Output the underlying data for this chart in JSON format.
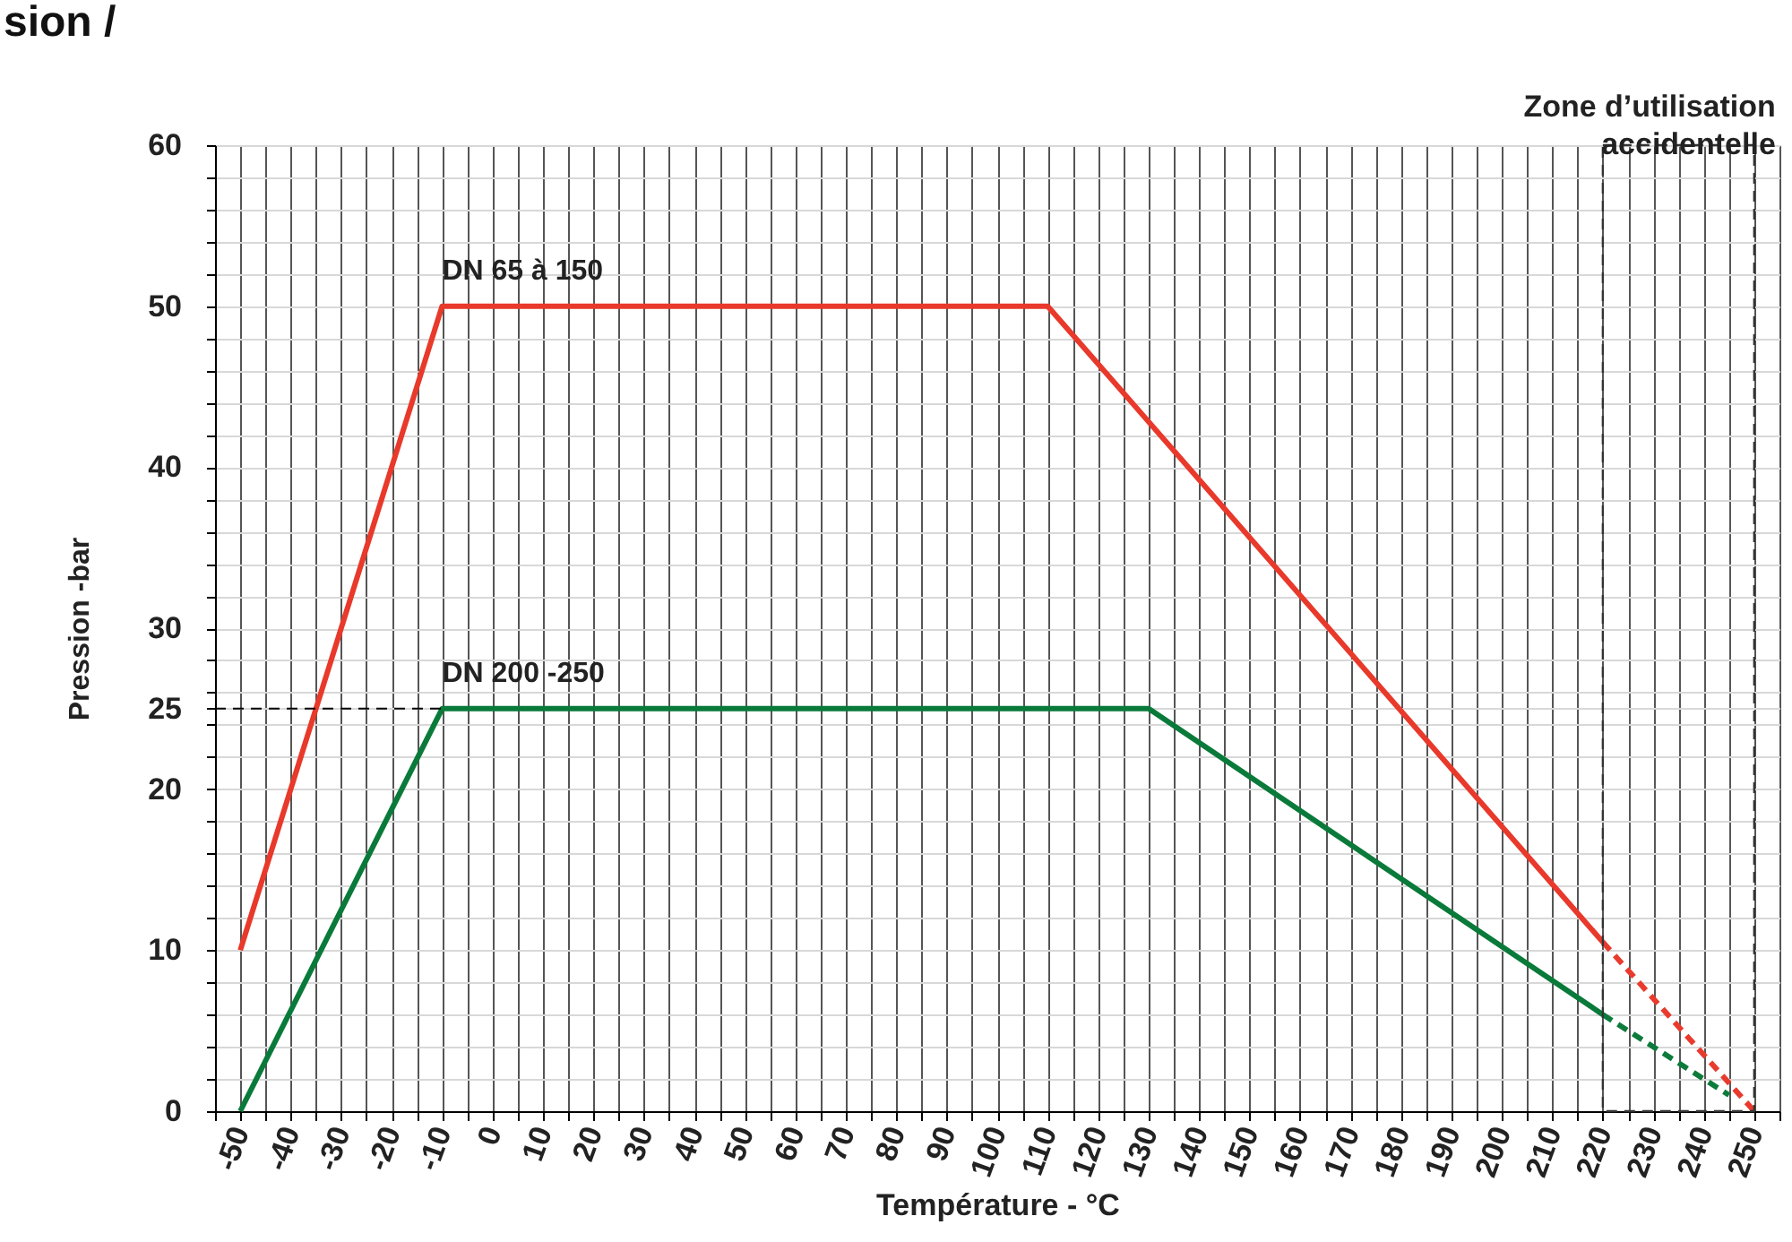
{
  "chart_data": {
    "type": "line",
    "title": "sion /",
    "xlabel": "Température - °C",
    "ylabel": "Pression -bar",
    "xlim": [
      -55,
      255
    ],
    "ylim": [
      0,
      60
    ],
    "xticks": [
      {
        "value": -55,
        "label": null
      },
      -50,
      {
        "value": -45,
        "label": null
      },
      -40,
      {
        "value": -35,
        "label": null
      },
      -30,
      {
        "value": -25,
        "label": null
      },
      -20,
      {
        "value": -15,
        "label": null
      },
      -10,
      {
        "value": -5,
        "label": null
      },
      0,
      {
        "value": 5,
        "label": null
      },
      10,
      {
        "value": 15,
        "label": null
      },
      20,
      {
        "value": 25,
        "label": null
      },
      30,
      {
        "value": 35,
        "label": null
      },
      40,
      {
        "value": 45,
        "label": null
      },
      50,
      {
        "value": 55,
        "label": null
      },
      60,
      {
        "value": 65,
        "label": null
      },
      70,
      {
        "value": 75,
        "label": null
      },
      80,
      {
        "value": 85,
        "label": null
      },
      90,
      {
        "value": 95,
        "label": null
      },
      100,
      {
        "value": 105,
        "label": null
      },
      110,
      {
        "value": 115,
        "label": null
      },
      120,
      {
        "value": 125,
        "label": null
      },
      130,
      {
        "value": 135,
        "label": null
      },
      140,
      {
        "value": 145,
        "label": null
      },
      150,
      {
        "value": 155,
        "label": null
      },
      160,
      {
        "value": 165,
        "label": null
      },
      170,
      {
        "value": 175,
        "label": null
      },
      180,
      {
        "value": 185,
        "label": null
      },
      190,
      {
        "value": 195,
        "label": null
      },
      200,
      {
        "value": 205,
        "label": null
      },
      210,
      {
        "value": 215,
        "label": null
      },
      220,
      {
        "value": 225,
        "label": null
      },
      230,
      {
        "value": 235,
        "label": null
      },
      240,
      {
        "value": 245,
        "label": null
      },
      250,
      {
        "value": 255,
        "label": null
      }
    ],
    "yticks": [
      0,
      {
        "value": 2,
        "label": null
      },
      {
        "value": 4,
        "label": null
      },
      {
        "value": 6,
        "label": null
      },
      {
        "value": 8,
        "label": null
      },
      10,
      {
        "value": 12,
        "label": null
      },
      {
        "value": 14,
        "label": null
      },
      {
        "value": 16,
        "label": null
      },
      {
        "value": 18,
        "label": null
      },
      20,
      {
        "value": 22,
        "label": null
      },
      {
        "value": 24,
        "label": null
      },
      25,
      {
        "value": 26,
        "label": null
      },
      {
        "value": 28,
        "label": null
      },
      30,
      {
        "value": 32,
        "label": null
      },
      {
        "value": 34,
        "label": null
      },
      {
        "value": 36,
        "label": null
      },
      {
        "value": 38,
        "label": null
      },
      40,
      {
        "value": 42,
        "label": null
      },
      {
        "value": 44,
        "label": null
      },
      {
        "value": 46,
        "label": null
      },
      {
        "value": 48,
        "label": null
      },
      50,
      {
        "value": 52,
        "label": null
      },
      {
        "value": 54,
        "label": null
      },
      {
        "value": 56,
        "label": null
      },
      {
        "value": 58,
        "label": null
      },
      60
    ],
    "grid": true,
    "series": [
      {
        "name": "DN 65 à 150",
        "color": "#e8392b",
        "x": [
          -50,
          -10,
          110,
          220
        ],
        "values": [
          10,
          50,
          50,
          10.5
        ]
      },
      {
        "name": "DN 200 -250",
        "color": "#0a7a3a",
        "x": [
          -50,
          -10,
          130,
          220
        ],
        "values": [
          0,
          25,
          25,
          6
        ]
      },
      {
        "color": "#e8392b",
        "line_style": "dashed",
        "x": [
          220,
          250
        ],
        "values": [
          10.5,
          0
        ]
      },
      {
        "color": "#0a7a3a",
        "line_style": "dashed",
        "x": [
          220,
          245
        ],
        "values": [
          6,
          1
        ]
      },
      {
        "color": "#000000",
        "line_style": "dashed",
        "x": [
          -55,
          -10
        ],
        "values": [
          25,
          25
        ]
      }
    ],
    "bands": [
      {
        "axis": "x",
        "from": 220,
        "to": 250,
        "label": "Zone d’utilisation\naccidentelle"
      }
    ]
  }
}
